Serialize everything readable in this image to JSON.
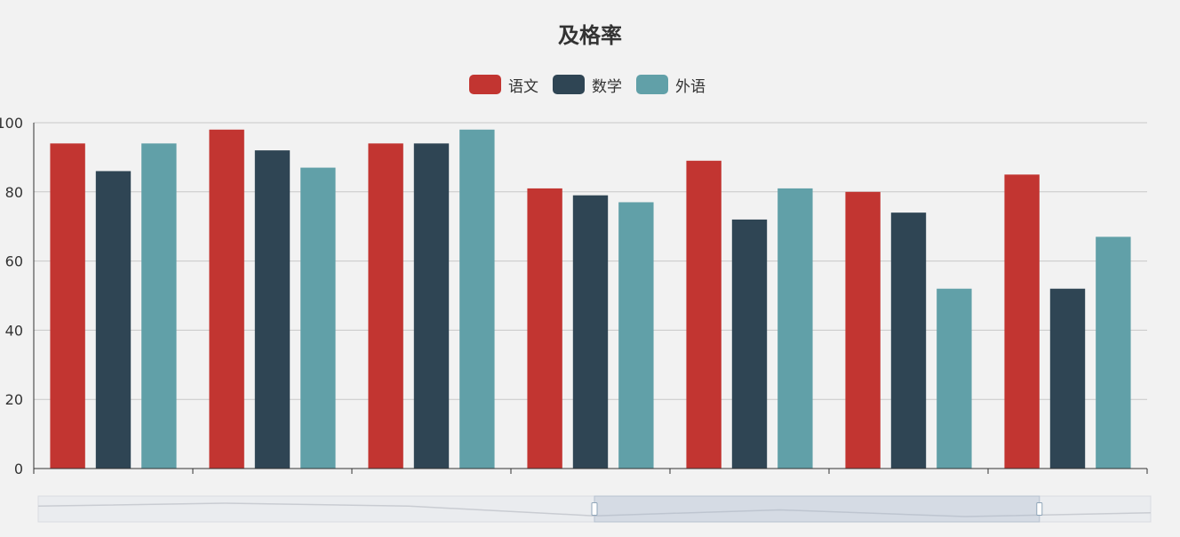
{
  "chart_data": {
    "type": "bar",
    "title": "及格率",
    "categories": [
      "",
      "",
      "",
      "",
      "",
      "",
      ""
    ],
    "series": [
      {
        "name": "语文",
        "values": [
          94,
          98,
          94,
          81,
          89,
          80,
          85
        ],
        "color": "#c23531"
      },
      {
        "name": "数学",
        "values": [
          86,
          92,
          94,
          79,
          72,
          74,
          52
        ],
        "color": "#2f4554"
      },
      {
        "name": "外语",
        "values": [
          94,
          87,
          98,
          77,
          81,
          52,
          67
        ],
        "color": "#61a0a8"
      }
    ],
    "xlabel": "",
    "ylabel": "",
    "ylim": [
      0,
      100
    ],
    "yticks": [
      0,
      20,
      40,
      60,
      80,
      100
    ],
    "grid": true,
    "legend_position": "top-center",
    "data_zoom": {
      "start": 50,
      "end": 90
    }
  }
}
